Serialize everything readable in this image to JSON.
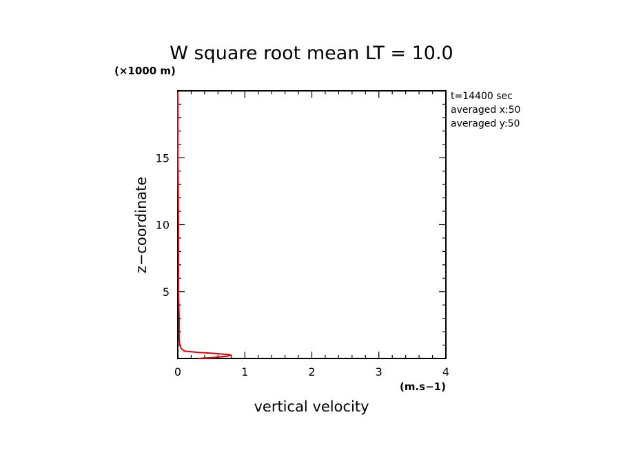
{
  "chart_data": {
    "type": "line",
    "title": "W square root mean LT = 10.0",
    "xlabel": "vertical velocity",
    "ylabel": "z−coordinate",
    "x_unit": "(m.s−1)",
    "y_unit": "(×1000 m)",
    "xlim": [
      0,
      4
    ],
    "ylim": [
      0,
      20
    ],
    "x_ticks": [
      0,
      1,
      2,
      3,
      4
    ],
    "y_ticks": [
      5,
      10,
      15
    ],
    "annotations": [
      "t=14400 sec",
      "averaged  x:50",
      "averaged  y:50"
    ],
    "series_color": "#e00000",
    "series": [
      {
        "x": [
          0.3,
          0.55,
          0.72,
          0.8,
          0.75,
          0.55,
          0.3,
          0.1,
          0.05,
          0.03,
          0.02,
          0.02,
          0.01,
          0.01,
          0.0,
          0.0
        ],
        "y": [
          0.0,
          0.08,
          0.16,
          0.24,
          0.3,
          0.38,
          0.46,
          0.55,
          0.75,
          1.0,
          1.5,
          3.0,
          5.0,
          10.0,
          15.0,
          19.9
        ]
      }
    ]
  }
}
